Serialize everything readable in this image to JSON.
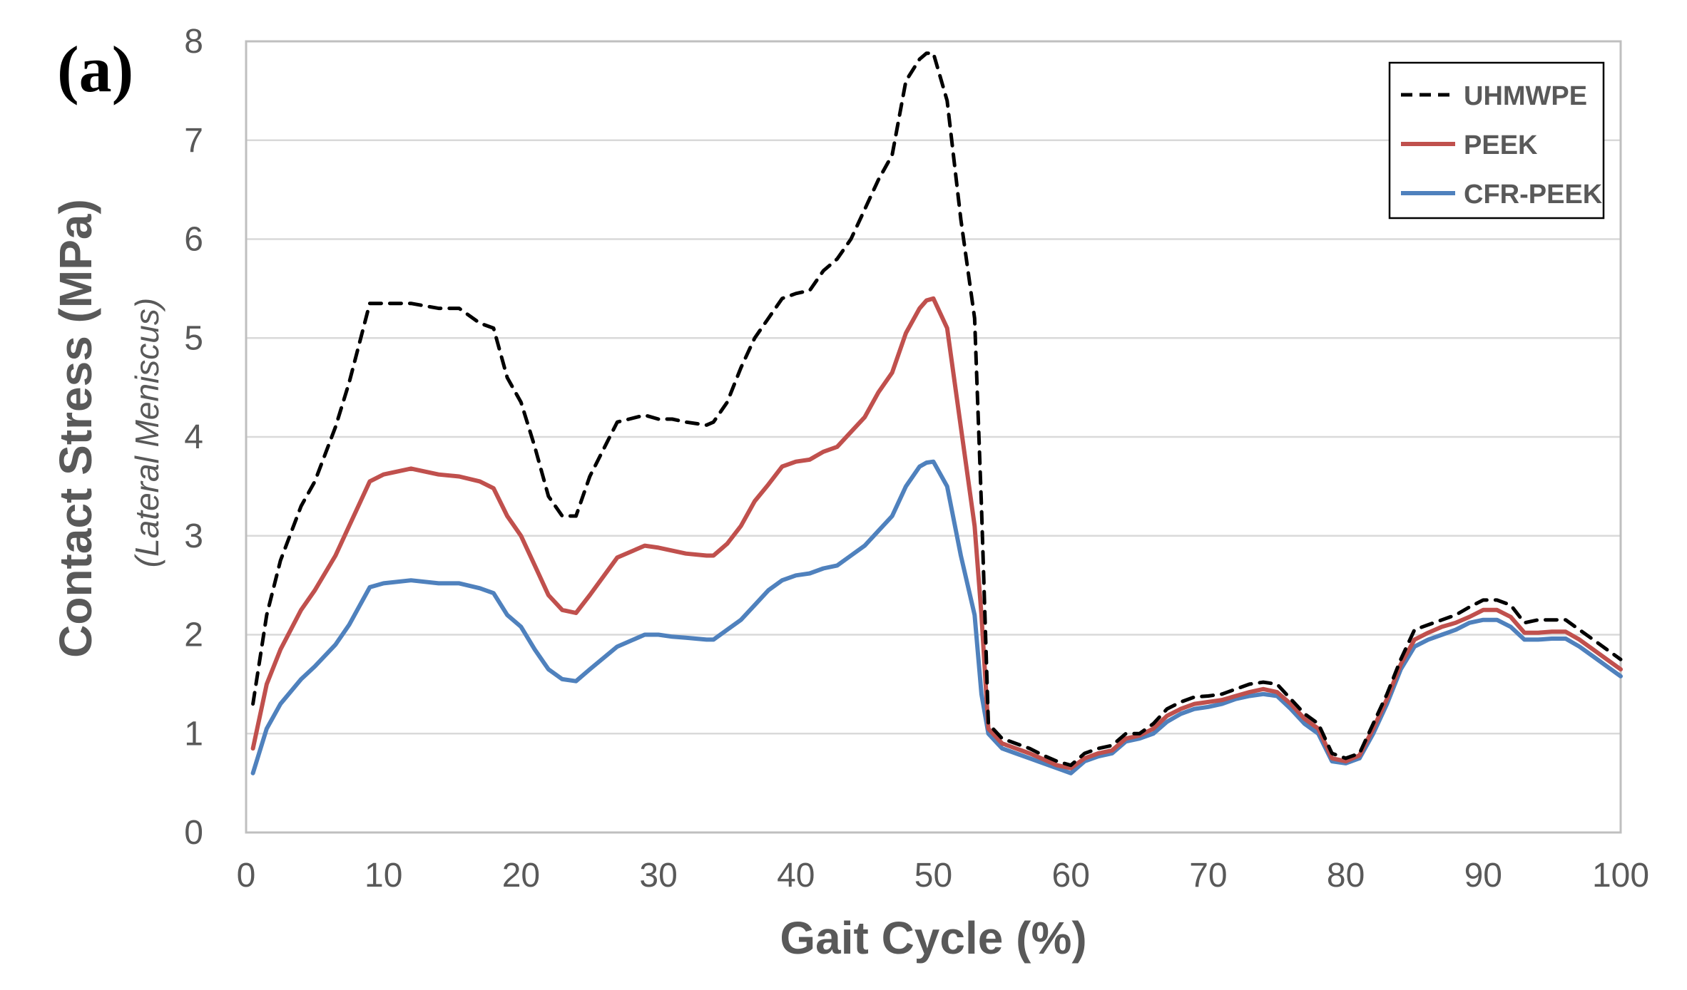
{
  "chart_data": {
    "type": "line",
    "panel_label": "(a)",
    "xlabel": "Gait Cycle (%)",
    "ylabel": "Contact Stress (MPa)",
    "ylabel_sub": "(Lateral Meniscus)",
    "xlim": [
      0,
      100
    ],
    "ylim": [
      0,
      8
    ],
    "xticks": [
      0,
      10,
      20,
      30,
      40,
      50,
      60,
      70,
      80,
      90,
      100
    ],
    "yticks": [
      0,
      1,
      2,
      3,
      4,
      5,
      6,
      7,
      8
    ],
    "grid": "horizontal",
    "legend_position": "top-right",
    "series": [
      {
        "name": "UHMWPE",
        "color": "#000000",
        "style": "dashed",
        "x": [
          0.5,
          1.5,
          2.5,
          4,
          5,
          6.5,
          7.5,
          9,
          10,
          12,
          14,
          15.5,
          17,
          18,
          19,
          20,
          21,
          22,
          23,
          24,
          25,
          27,
          29,
          30,
          31,
          32,
          33.5,
          34,
          35,
          36,
          37,
          38,
          39,
          40,
          41,
          42,
          43,
          44,
          45,
          46,
          47,
          48,
          49,
          49.5,
          50,
          51,
          52,
          53,
          53.5,
          54,
          55,
          56,
          57,
          58,
          59,
          60,
          61,
          62,
          63,
          64,
          65,
          66,
          67,
          68,
          69,
          70,
          71,
          72,
          73,
          74,
          75,
          76,
          77,
          78,
          79,
          80,
          81,
          82,
          83,
          84,
          85,
          86,
          87,
          88,
          89,
          90,
          91,
          92,
          93,
          94,
          95,
          96,
          97,
          98,
          99,
          100
        ],
        "values": [
          1.3,
          2.2,
          2.75,
          3.3,
          3.55,
          4.1,
          4.55,
          5.35,
          5.35,
          5.35,
          5.3,
          5.3,
          5.15,
          5.1,
          4.6,
          4.35,
          3.9,
          3.4,
          3.2,
          3.2,
          3.6,
          4.15,
          4.22,
          4.18,
          4.18,
          4.15,
          4.12,
          4.15,
          4.35,
          4.7,
          5.0,
          5.2,
          5.4,
          5.45,
          5.48,
          5.68,
          5.8,
          6.0,
          6.3,
          6.6,
          6.85,
          7.6,
          7.82,
          7.88,
          7.88,
          7.4,
          6.2,
          5.2,
          3.3,
          1.1,
          0.95,
          0.9,
          0.85,
          0.78,
          0.72,
          0.68,
          0.8,
          0.85,
          0.88,
          1.0,
          1.0,
          1.1,
          1.25,
          1.32,
          1.37,
          1.38,
          1.4,
          1.45,
          1.5,
          1.52,
          1.5,
          1.35,
          1.2,
          1.1,
          0.8,
          0.75,
          0.8,
          1.1,
          1.4,
          1.75,
          2.05,
          2.1,
          2.15,
          2.2,
          2.28,
          2.35,
          2.35,
          2.3,
          2.12,
          2.15,
          2.15,
          2.15,
          2.05,
          1.95,
          1.85,
          1.75
        ]
      },
      {
        "name": "PEEK",
        "color": "#c0504d",
        "style": "solid",
        "x": [
          0.5,
          1.5,
          2.5,
          4,
          5,
          6.5,
          7.5,
          9,
          10,
          12,
          14,
          15.5,
          17,
          18,
          19,
          20,
          21,
          22,
          23,
          24,
          25,
          27,
          29,
          30,
          31,
          32,
          33.5,
          34,
          35,
          36,
          37,
          38,
          39,
          40,
          41,
          42,
          43,
          44,
          45,
          46,
          47,
          48,
          49,
          49.5,
          50,
          51,
          52,
          53,
          53.5,
          54,
          55,
          56,
          57,
          58,
          59,
          60,
          61,
          62,
          63,
          64,
          65,
          66,
          67,
          68,
          69,
          70,
          71,
          72,
          73,
          74,
          75,
          76,
          77,
          78,
          79,
          80,
          81,
          82,
          83,
          84,
          85,
          86,
          87,
          88,
          89,
          90,
          91,
          92,
          93,
          94,
          95,
          96,
          97,
          98,
          99,
          100
        ],
        "values": [
          0.85,
          1.5,
          1.85,
          2.25,
          2.45,
          2.8,
          3.1,
          3.55,
          3.62,
          3.68,
          3.62,
          3.6,
          3.55,
          3.48,
          3.2,
          3.0,
          2.7,
          2.4,
          2.25,
          2.22,
          2.4,
          2.78,
          2.9,
          2.88,
          2.85,
          2.82,
          2.8,
          2.8,
          2.92,
          3.1,
          3.35,
          3.52,
          3.7,
          3.75,
          3.77,
          3.85,
          3.9,
          4.05,
          4.2,
          4.45,
          4.65,
          5.05,
          5.3,
          5.38,
          5.4,
          5.1,
          4.1,
          3.1,
          2.2,
          1.05,
          0.9,
          0.85,
          0.8,
          0.74,
          0.68,
          0.65,
          0.75,
          0.8,
          0.83,
          0.95,
          0.98,
          1.05,
          1.18,
          1.25,
          1.3,
          1.32,
          1.34,
          1.38,
          1.42,
          1.45,
          1.42,
          1.3,
          1.15,
          1.05,
          0.75,
          0.72,
          0.78,
          1.05,
          1.35,
          1.7,
          1.95,
          2.02,
          2.08,
          2.12,
          2.18,
          2.25,
          2.25,
          2.18,
          2.02,
          2.02,
          2.03,
          2.03,
          1.95,
          1.85,
          1.75,
          1.65
        ]
      },
      {
        "name": "CFR-PEEK",
        "color": "#4f81bd",
        "style": "solid",
        "x": [
          0.5,
          1.5,
          2.5,
          4,
          5,
          6.5,
          7.5,
          9,
          10,
          12,
          14,
          15.5,
          17,
          18,
          19,
          20,
          21,
          22,
          23,
          24,
          25,
          27,
          29,
          30,
          31,
          32,
          33.5,
          34,
          35,
          36,
          37,
          38,
          39,
          40,
          41,
          42,
          43,
          44,
          45,
          46,
          47,
          48,
          49,
          49.5,
          50,
          51,
          52,
          53,
          53.5,
          54,
          55,
          56,
          57,
          58,
          59,
          60,
          61,
          62,
          63,
          64,
          65,
          66,
          67,
          68,
          69,
          70,
          71,
          72,
          73,
          74,
          75,
          76,
          77,
          78,
          79,
          80,
          81,
          82,
          83,
          84,
          85,
          86,
          87,
          88,
          89,
          90,
          91,
          92,
          93,
          94,
          95,
          96,
          97,
          98,
          99,
          100
        ],
        "values": [
          0.6,
          1.05,
          1.3,
          1.55,
          1.68,
          1.9,
          2.1,
          2.48,
          2.52,
          2.55,
          2.52,
          2.52,
          2.47,
          2.42,
          2.2,
          2.08,
          1.85,
          1.65,
          1.55,
          1.53,
          1.65,
          1.88,
          2.0,
          2.0,
          1.98,
          1.97,
          1.95,
          1.95,
          2.05,
          2.15,
          2.3,
          2.45,
          2.55,
          2.6,
          2.62,
          2.67,
          2.7,
          2.8,
          2.9,
          3.05,
          3.2,
          3.5,
          3.7,
          3.74,
          3.75,
          3.5,
          2.8,
          2.2,
          1.4,
          1.0,
          0.85,
          0.8,
          0.75,
          0.7,
          0.65,
          0.6,
          0.72,
          0.77,
          0.8,
          0.92,
          0.95,
          1.0,
          1.12,
          1.2,
          1.25,
          1.27,
          1.3,
          1.35,
          1.38,
          1.4,
          1.38,
          1.25,
          1.1,
          1.0,
          0.72,
          0.7,
          0.75,
          1.0,
          1.3,
          1.65,
          1.88,
          1.95,
          2.0,
          2.05,
          2.12,
          2.15,
          2.15,
          2.08,
          1.95,
          1.95,
          1.96,
          1.96,
          1.88,
          1.78,
          1.68,
          1.58
        ]
      }
    ]
  }
}
